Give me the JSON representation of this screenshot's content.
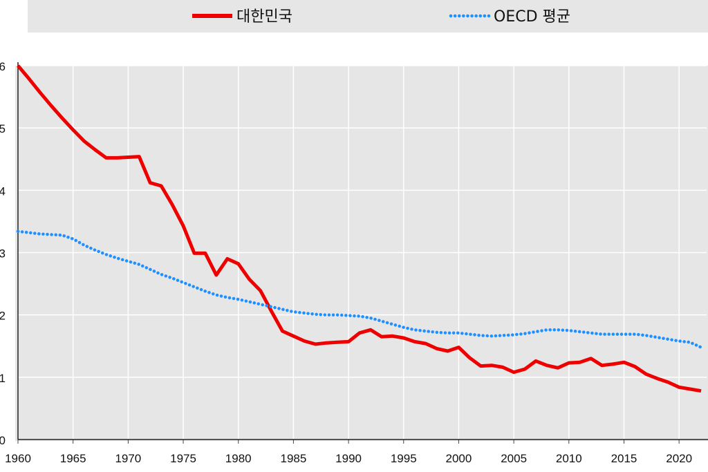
{
  "chart_data": {
    "type": "line",
    "title": "",
    "xlabel": "",
    "ylabel": "",
    "xlim": [
      1960,
      2022.5
    ],
    "ylim": [
      0,
      6
    ],
    "grid": true,
    "legend_position": "top",
    "x_ticks": [
      1960,
      1965,
      1970,
      1975,
      1980,
      1985,
      1990,
      1995,
      2000,
      2005,
      2010,
      2015,
      2020
    ],
    "x_tick_labels": [
      "1960",
      "1965",
      "1970",
      "1975",
      "1980",
      "1985",
      "1990",
      "1995",
      "2000",
      "2005",
      "2010",
      "2015",
      "2020"
    ],
    "y_ticks": [
      0,
      1,
      2,
      3,
      4,
      5,
      6
    ],
    "y_tick_labels": [
      "0",
      "1",
      "2",
      "3",
      "4",
      "5",
      "6"
    ],
    "series": [
      {
        "name": "대한민국",
        "color": "#ee0000",
        "style": "solid",
        "x": [
          1960,
          1961,
          1962,
          1963,
          1964,
          1965,
          1966,
          1967,
          1968,
          1969,
          1970,
          1971,
          1972,
          1973,
          1974,
          1975,
          1976,
          1977,
          1978,
          1979,
          1980,
          1981,
          1982,
          1983,
          1984,
          1985,
          1986,
          1987,
          1988,
          1989,
          1990,
          1991,
          1992,
          1993,
          1994,
          1995,
          1996,
          1997,
          1998,
          1999,
          2000,
          2001,
          2002,
          2003,
          2004,
          2005,
          2006,
          2007,
          2008,
          2009,
          2010,
          2011,
          2012,
          2013,
          2014,
          2015,
          2016,
          2017,
          2018,
          2019,
          2020,
          2021,
          2022
        ],
        "values": [
          6.0,
          5.79,
          5.57,
          5.36,
          5.16,
          4.97,
          4.79,
          4.65,
          4.52,
          4.52,
          4.53,
          4.54,
          4.12,
          4.07,
          3.77,
          3.43,
          2.99,
          2.99,
          2.64,
          2.9,
          2.82,
          2.57,
          2.39,
          2.06,
          1.74,
          1.66,
          1.58,
          1.53,
          1.55,
          1.56,
          1.57,
          1.71,
          1.76,
          1.65,
          1.66,
          1.63,
          1.57,
          1.54,
          1.46,
          1.42,
          1.48,
          1.31,
          1.18,
          1.19,
          1.16,
          1.08,
          1.13,
          1.26,
          1.19,
          1.15,
          1.23,
          1.24,
          1.3,
          1.19,
          1.21,
          1.24,
          1.17,
          1.05,
          0.98,
          0.92,
          0.84,
          0.81,
          0.78
        ]
      },
      {
        "name": "OECD 평균",
        "color": "#1e90ff",
        "style": "dotted",
        "x": [
          1960,
          1961,
          1962,
          1963,
          1964,
          1965,
          1966,
          1967,
          1968,
          1969,
          1970,
          1971,
          1972,
          1973,
          1974,
          1975,
          1976,
          1977,
          1978,
          1979,
          1980,
          1981,
          1982,
          1983,
          1984,
          1985,
          1986,
          1987,
          1988,
          1989,
          1990,
          1991,
          1992,
          1993,
          1994,
          1995,
          1996,
          1997,
          1998,
          1999,
          2000,
          2001,
          2002,
          2003,
          2004,
          2005,
          2006,
          2007,
          2008,
          2009,
          2010,
          2011,
          2012,
          2013,
          2014,
          2015,
          2016,
          2017,
          2018,
          2019,
          2020,
          2021,
          2022
        ],
        "values": [
          3.34,
          3.32,
          3.3,
          3.29,
          3.28,
          3.22,
          3.12,
          3.04,
          2.97,
          2.91,
          2.86,
          2.81,
          2.73,
          2.65,
          2.59,
          2.52,
          2.45,
          2.38,
          2.32,
          2.28,
          2.25,
          2.21,
          2.17,
          2.13,
          2.09,
          2.05,
          2.03,
          2.01,
          2.0,
          2.0,
          1.99,
          1.98,
          1.95,
          1.9,
          1.85,
          1.8,
          1.76,
          1.74,
          1.72,
          1.71,
          1.71,
          1.69,
          1.67,
          1.66,
          1.67,
          1.68,
          1.7,
          1.73,
          1.76,
          1.76,
          1.75,
          1.73,
          1.71,
          1.69,
          1.69,
          1.69,
          1.69,
          1.67,
          1.64,
          1.61,
          1.58,
          1.56,
          1.48
        ]
      }
    ]
  }
}
